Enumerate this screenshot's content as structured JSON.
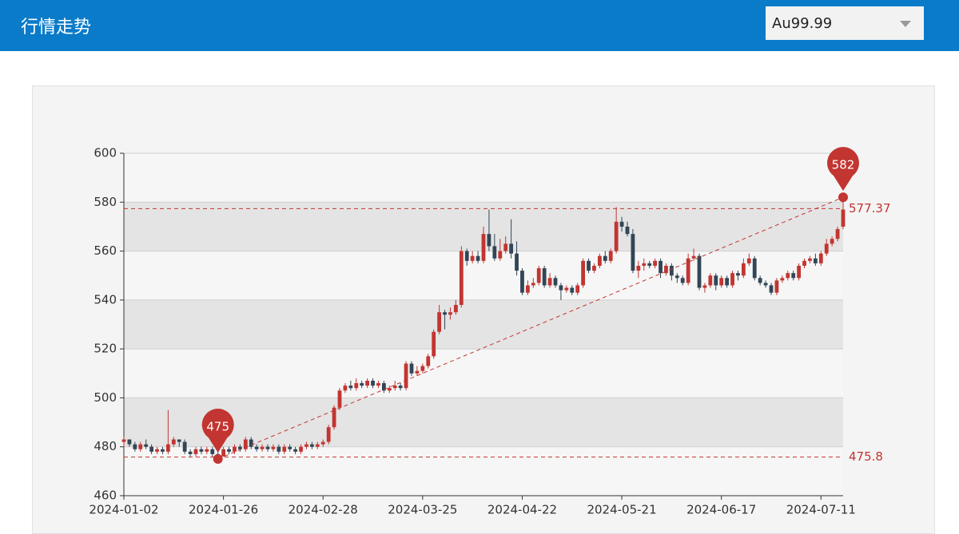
{
  "header": {
    "title": "行情走势",
    "selector": "Au99.99"
  },
  "chart_data": {
    "type": "candlestick",
    "categories": [
      "2024-01-02",
      null,
      null,
      null,
      null,
      null,
      null,
      null,
      null,
      null,
      null,
      null,
      null,
      null,
      null,
      null,
      null,
      null,
      "2024-01-26",
      null,
      null,
      null,
      null,
      null,
      null,
      null,
      null,
      null,
      null,
      null,
      null,
      null,
      null,
      null,
      null,
      null,
      "2024-02-28",
      null,
      null,
      null,
      null,
      null,
      null,
      null,
      null,
      null,
      null,
      null,
      null,
      null,
      null,
      null,
      null,
      null,
      "2024-03-25",
      null,
      null,
      null,
      null,
      null,
      null,
      null,
      null,
      null,
      null,
      null,
      null,
      null,
      null,
      null,
      null,
      null,
      "2024-04-22",
      null,
      null,
      null,
      null,
      null,
      null,
      null,
      null,
      null,
      null,
      null,
      null,
      null,
      null,
      null,
      null,
      null,
      "2024-05-21",
      null,
      null,
      null,
      null,
      null,
      null,
      null,
      null,
      null,
      null,
      null,
      null,
      null,
      null,
      null,
      null,
      null,
      "2024-06-17",
      null,
      null,
      null,
      null,
      null,
      null,
      null,
      null,
      null,
      null,
      null,
      null,
      null,
      null,
      null,
      null,
      null,
      "2024-07-11",
      null,
      null,
      null,
      null
    ],
    "values": [
      [
        482,
        483,
        480,
        484
      ],
      [
        483,
        481,
        480,
        483
      ],
      [
        481,
        479,
        478,
        482
      ],
      [
        479,
        481,
        478,
        482
      ],
      [
        481,
        480,
        479,
        483
      ],
      [
        480,
        478,
        477,
        481
      ],
      [
        478,
        479,
        477,
        480
      ],
      [
        479,
        478,
        477,
        480
      ],
      [
        478,
        481,
        477,
        495
      ],
      [
        481,
        483,
        480,
        484
      ],
      [
        483,
        482,
        480,
        483
      ],
      [
        482,
        478,
        477,
        483
      ],
      [
        478,
        477,
        476,
        479
      ],
      [
        477,
        479,
        476,
        480
      ],
      [
        479,
        478,
        477,
        480
      ],
      [
        478,
        479,
        477,
        480
      ],
      [
        479,
        477,
        476,
        480
      ],
      [
        477,
        476,
        475,
        478
      ],
      [
        476,
        479,
        476,
        480
      ],
      [
        479,
        478,
        477,
        480
      ],
      [
        478,
        480,
        477,
        481
      ],
      [
        480,
        479,
        478,
        481
      ],
      [
        479,
        483,
        478,
        484
      ],
      [
        483,
        480,
        479,
        484
      ],
      [
        480,
        479,
        478,
        481
      ],
      [
        479,
        480,
        478,
        481
      ],
      [
        480,
        479,
        478,
        481
      ],
      [
        479,
        480,
        478,
        481
      ],
      [
        480,
        478,
        477,
        481
      ],
      [
        478,
        480,
        477,
        481
      ],
      [
        480,
        479,
        478,
        481
      ],
      [
        479,
        478,
        477,
        480
      ],
      [
        478,
        480,
        477,
        481
      ],
      [
        480,
        481,
        479,
        482
      ],
      [
        481,
        480,
        479,
        482
      ],
      [
        480,
        481,
        479,
        482
      ],
      [
        481,
        482,
        480,
        483
      ],
      [
        482,
        488,
        481,
        489
      ],
      [
        488,
        496,
        487,
        497
      ],
      [
        496,
        503,
        495,
        504
      ],
      [
        503,
        505,
        502,
        506
      ],
      [
        505,
        504,
        503,
        507
      ],
      [
        504,
        506,
        503,
        508
      ],
      [
        506,
        505,
        504,
        507
      ],
      [
        505,
        507,
        504,
        508
      ],
      [
        507,
        505,
        504,
        508
      ],
      [
        505,
        506,
        504,
        507
      ],
      [
        506,
        503,
        502,
        507
      ],
      [
        503,
        504,
        502,
        505
      ],
      [
        504,
        505,
        503,
        507
      ],
      [
        505,
        504,
        503,
        506
      ],
      [
        504,
        514,
        503,
        515
      ],
      [
        514,
        510,
        509,
        515
      ],
      [
        510,
        511,
        509,
        513
      ],
      [
        511,
        513,
        510,
        514
      ],
      [
        513,
        517,
        512,
        518
      ],
      [
        517,
        527,
        516,
        528
      ],
      [
        527,
        535,
        526,
        538
      ],
      [
        535,
        534,
        528,
        536
      ],
      [
        534,
        535,
        532,
        537
      ],
      [
        535,
        538,
        534,
        540
      ],
      [
        538,
        560,
        537,
        562
      ],
      [
        560,
        556,
        554,
        561
      ],
      [
        556,
        558,
        555,
        560
      ],
      [
        558,
        556,
        555,
        560
      ],
      [
        556,
        567,
        555,
        570
      ],
      [
        567,
        562,
        560,
        577
      ],
      [
        562,
        557,
        556,
        567
      ],
      [
        557,
        560,
        556,
        565
      ],
      [
        560,
        563,
        559,
        566
      ],
      [
        563,
        559,
        557,
        573
      ],
      [
        559,
        552,
        550,
        564
      ],
      [
        552,
        543,
        542,
        553
      ],
      [
        543,
        546,
        542,
        548
      ],
      [
        546,
        547,
        545,
        549
      ],
      [
        547,
        553,
        546,
        554
      ],
      [
        553,
        546,
        545,
        554
      ],
      [
        546,
        549,
        545,
        551
      ],
      [
        549,
        546,
        545,
        550
      ],
      [
        546,
        544,
        540,
        547
      ],
      [
        544,
        545,
        543,
        546
      ],
      [
        545,
        543,
        542,
        546
      ],
      [
        543,
        546,
        542,
        547
      ],
      [
        546,
        556,
        545,
        557
      ],
      [
        556,
        552,
        551,
        557
      ],
      [
        552,
        554,
        551,
        555
      ],
      [
        554,
        558,
        553,
        559
      ],
      [
        558,
        556,
        555,
        560
      ],
      [
        556,
        560,
        555,
        561
      ],
      [
        560,
        572,
        559,
        578
      ],
      [
        572,
        570,
        568,
        574
      ],
      [
        570,
        567,
        566,
        572
      ],
      [
        567,
        552,
        551,
        569
      ],
      [
        552,
        554,
        549,
        556
      ],
      [
        554,
        555,
        552,
        557
      ],
      [
        555,
        554,
        553,
        556
      ],
      [
        554,
        556,
        553,
        557
      ],
      [
        556,
        551,
        549,
        557
      ],
      [
        551,
        554,
        550,
        555
      ],
      [
        554,
        550,
        548,
        555
      ],
      [
        550,
        549,
        547,
        551
      ],
      [
        549,
        547,
        546,
        550
      ],
      [
        547,
        557,
        546,
        559
      ],
      [
        557,
        558,
        556,
        561
      ],
      [
        558,
        545,
        544,
        559
      ],
      [
        545,
        546,
        543,
        547
      ],
      [
        546,
        550,
        545,
        551
      ],
      [
        550,
        546,
        544,
        551
      ],
      [
        546,
        549,
        545,
        550
      ],
      [
        549,
        546,
        545,
        550
      ],
      [
        546,
        551,
        545,
        552
      ],
      [
        551,
        550,
        548,
        552
      ],
      [
        550,
        555,
        549,
        557
      ],
      [
        555,
        557,
        554,
        559
      ],
      [
        557,
        549,
        548,
        558
      ],
      [
        549,
        547,
        546,
        550
      ],
      [
        547,
        546,
        545,
        548
      ],
      [
        546,
        543,
        542,
        547
      ],
      [
        543,
        548,
        542,
        549
      ],
      [
        548,
        549,
        547,
        550
      ],
      [
        549,
        551,
        548,
        552
      ],
      [
        551,
        549,
        548,
        552
      ],
      [
        549,
        554,
        548,
        555
      ],
      [
        554,
        556,
        553,
        557
      ],
      [
        556,
        557,
        555,
        558
      ],
      [
        557,
        555,
        554,
        559
      ],
      [
        555,
        559,
        554,
        560
      ],
      [
        559,
        563,
        558,
        565
      ],
      [
        563,
        565,
        562,
        566
      ],
      [
        565,
        569,
        564,
        570
      ],
      [
        570,
        577,
        569,
        582
      ]
    ],
    "up_color": "#c23531",
    "down_color": "#314656",
    "ylim": [
      460,
      600
    ],
    "yticks": [
      460,
      480,
      500,
      520,
      540,
      560,
      580,
      600
    ],
    "split_area": true,
    "mark_points": [
      475,
      582
    ],
    "mark_lines": [
      577.37,
      475.8
    ]
  }
}
